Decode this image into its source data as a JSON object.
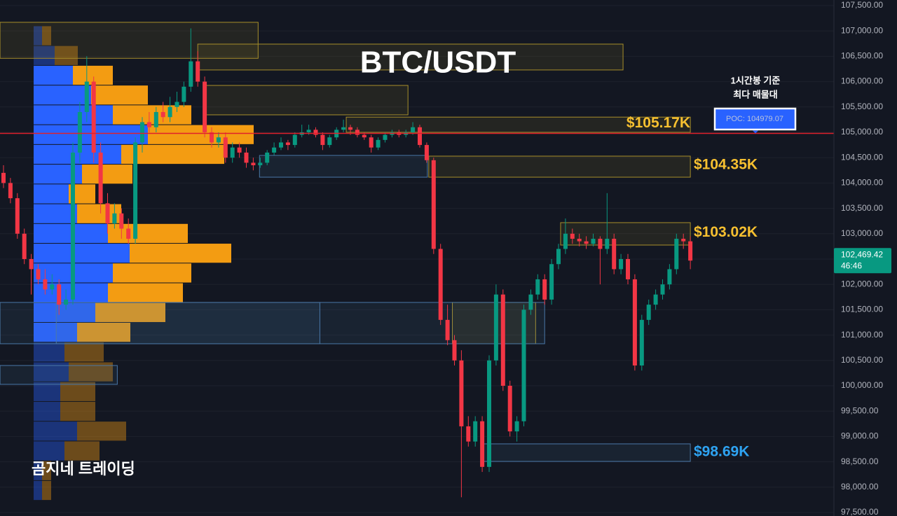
{
  "chart_data": {
    "type": "candlestick",
    "title": "BTC/USDT",
    "watermark": "곰지네 트레이딩",
    "ylim": [
      97431,
      107610
    ],
    "yticks": [
      {
        "value": 97500,
        "label": "97,500.00"
      },
      {
        "value": 98000,
        "label": "98,000.00"
      },
      {
        "value": 98500,
        "label": "98,500.00"
      },
      {
        "value": 99000,
        "label": "99,000.00"
      },
      {
        "value": 99500,
        "label": "99,500.00"
      },
      {
        "value": 100000,
        "label": "100,000.00"
      },
      {
        "value": 100500,
        "label": "100,500.00"
      },
      {
        "value": 101000,
        "label": "101,000.00"
      },
      {
        "value": 101500,
        "label": "101,500.00"
      },
      {
        "value": 102000,
        "label": "102,000.00"
      },
      {
        "value": 102500,
        "label": "102,500.00"
      },
      {
        "value": 103000,
        "label": "103,000.00"
      },
      {
        "value": 103500,
        "label": "103,500.00"
      },
      {
        "value": 104000,
        "label": "104,000.00"
      },
      {
        "value": 104500,
        "label": "104,500.00"
      },
      {
        "value": 105000,
        "label": "105,000.00"
      },
      {
        "value": 105500,
        "label": "105,500.00"
      },
      {
        "value": 106000,
        "label": "106,000.00"
      },
      {
        "value": 106500,
        "label": "106,500.00"
      },
      {
        "value": 107000,
        "label": "107,000.00"
      },
      {
        "value": 107500,
        "label": "107,500.00"
      }
    ],
    "grid": true,
    "up_color": "#089981",
    "down_color": "#f23645",
    "candles": [
      [
        104200,
        104350,
        103900,
        104000
      ],
      [
        104000,
        104100,
        103600,
        103700
      ],
      [
        103700,
        103800,
        102900,
        103000
      ],
      [
        103000,
        103100,
        102400,
        102500
      ],
      [
        102500,
        102600,
        101800,
        102300
      ],
      [
        102300,
        102400,
        102000,
        102100
      ],
      [
        102100,
        102300,
        101800,
        101900
      ],
      [
        101900,
        102200,
        101800,
        102000
      ],
      [
        102000,
        102100,
        101400,
        101600
      ],
      [
        101600,
        101900,
        101500,
        101700
      ],
      [
        101700,
        104800,
        101600,
        104600
      ],
      [
        104600,
        105600,
        104400,
        105400
      ],
      [
        105400,
        106500,
        105200,
        106000
      ],
      [
        106000,
        106100,
        104400,
        104600
      ],
      [
        104600,
        104800,
        103400,
        103600
      ],
      [
        103600,
        103800,
        103000,
        103200
      ],
      [
        103200,
        103600,
        103100,
        103400
      ],
      [
        103400,
        103500,
        102900,
        103100
      ],
      [
        103100,
        103300,
        102800,
        102900
      ],
      [
        102900,
        104900,
        102800,
        104800
      ],
      [
        104800,
        105300,
        104600,
        105200
      ],
      [
        105200,
        105400,
        105000,
        105100
      ],
      [
        105100,
        105500,
        105000,
        105400
      ],
      [
        105400,
        105600,
        105200,
        105300
      ],
      [
        105300,
        105700,
        105200,
        105500
      ],
      [
        105500,
        105800,
        105400,
        105600
      ],
      [
        105600,
        106000,
        105500,
        105900
      ],
      [
        105900,
        107050,
        105800,
        106400
      ],
      [
        106400,
        106600,
        105900,
        106000
      ],
      [
        106000,
        106100,
        104900,
        105000
      ],
      [
        105000,
        105100,
        104700,
        104800
      ],
      [
        104800,
        105000,
        104700,
        104900
      ],
      [
        104900,
        105000,
        104400,
        104500
      ],
      [
        104500,
        104800,
        104400,
        104700
      ],
      [
        104700,
        104800,
        104500,
        104600
      ],
      [
        104600,
        104700,
        104300,
        104400
      ],
      [
        104400,
        104500,
        104250,
        104350
      ],
      [
        104350,
        104500,
        104300,
        104400
      ],
      [
        104400,
        104650,
        104350,
        104600
      ],
      [
        104600,
        104800,
        104550,
        104700
      ],
      [
        104700,
        104900,
        104650,
        104800
      ],
      [
        104800,
        104850,
        104650,
        104750
      ],
      [
        104750,
        105000,
        104700,
        104950
      ],
      [
        104950,
        105150,
        104900,
        105000
      ],
      [
        105000,
        105150,
        104950,
        105050
      ],
      [
        105050,
        105100,
        104900,
        104950
      ],
      [
        104950,
        105000,
        104650,
        104750
      ],
      [
        104750,
        104950,
        104700,
        104900
      ],
      [
        104900,
        105100,
        104850,
        105050
      ],
      [
        105050,
        105250,
        105000,
        105100
      ],
      [
        105100,
        105150,
        104950,
        105050
      ],
      [
        105050,
        105100,
        104900,
        104950
      ],
      [
        104950,
        105000,
        104850,
        104900
      ],
      [
        104900,
        104950,
        104600,
        104700
      ],
      [
        104700,
        104900,
        104650,
        104850
      ],
      [
        104850,
        105000,
        104800,
        104950
      ],
      [
        104950,
        105050,
        104900,
        105000
      ],
      [
        105000,
        105050,
        104900,
        104950
      ],
      [
        104950,
        105050,
        104900,
        105000
      ],
      [
        105000,
        105200,
        104950,
        105100
      ],
      [
        105100,
        105150,
        104700,
        104750
      ],
      [
        104750,
        104800,
        104400,
        104450
      ],
      [
        104450,
        104500,
        102600,
        102700
      ],
      [
        102700,
        102800,
        101200,
        101300
      ],
      [
        101300,
        101600,
        100800,
        100900
      ],
      [
        100900,
        101000,
        100400,
        100500
      ],
      [
        100500,
        100700,
        97800,
        99200
      ],
      [
        99200,
        99400,
        98800,
        98900
      ],
      [
        98900,
        99400,
        98800,
        99300
      ],
      [
        99300,
        99400,
        98300,
        98400
      ],
      [
        98400,
        100600,
        98300,
        100500
      ],
      [
        100500,
        102000,
        100400,
        101800
      ],
      [
        101800,
        101900,
        99900,
        100000
      ],
      [
        100000,
        100100,
        99000,
        99100
      ],
      [
        99100,
        99400,
        98900,
        99300
      ],
      [
        99300,
        101600,
        99200,
        101500
      ],
      [
        101500,
        101900,
        101400,
        101800
      ],
      [
        101800,
        102200,
        101700,
        102100
      ],
      [
        102100,
        102200,
        101600,
        101700
      ],
      [
        101700,
        102500,
        101600,
        102400
      ],
      [
        102400,
        102800,
        102300,
        102700
      ],
      [
        102700,
        103300,
        102600,
        103000
      ],
      [
        103000,
        103100,
        102800,
        102900
      ],
      [
        102900,
        103000,
        102750,
        102850
      ],
      [
        102850,
        102950,
        102700,
        102800
      ],
      [
        102800,
        103000,
        102750,
        102900
      ],
      [
        102900,
        102950,
        102000,
        102700
      ],
      [
        102700,
        103800,
        102600,
        102900
      ],
      [
        102900,
        103000,
        102200,
        102300
      ],
      [
        102300,
        102600,
        102200,
        102500
      ],
      [
        102500,
        102600,
        102000,
        102100
      ],
      [
        102100,
        102200,
        100300,
        100400
      ],
      [
        100400,
        101400,
        100300,
        101300
      ],
      [
        101300,
        101700,
        101200,
        101600
      ],
      [
        101600,
        101900,
        101500,
        101800
      ],
      [
        101800,
        102100,
        101700,
        102000
      ],
      [
        102000,
        102400,
        101900,
        102300
      ],
      [
        102300,
        103000,
        102200,
        102900
      ],
      [
        102900,
        103000,
        102700,
        102850
      ],
      [
        102850,
        102950,
        102300,
        102469.42
      ]
    ],
    "volume_profile": {
      "bins": [
        107100,
        106710,
        106320,
        105930,
        105540,
        105150,
        104760,
        104370,
        103980,
        103590,
        103200,
        102810,
        102420,
        102030,
        101640,
        101250,
        100860,
        100470,
        100080,
        99690,
        99300,
        98910,
        98520,
        98130,
        97740
      ],
      "buy": [
        12,
        30,
        56,
        82,
        113,
        163,
        125,
        69,
        50,
        62,
        106,
        137,
        113,
        106,
        88,
        62,
        44,
        50,
        38,
        38,
        62,
        44,
        12,
        12
      ],
      "sell": [
        13,
        33,
        57,
        81,
        112,
        151,
        147,
        72,
        38,
        63,
        114,
        145,
        112,
        107,
        100,
        76,
        56,
        63,
        50,
        50,
        70,
        50,
        13,
        13
      ],
      "buy_color": "#2962ff",
      "sell_color": "#f39c12",
      "value_area": [
        100860,
        106320
      ]
    },
    "zones": [
      {
        "start": -0.5,
        "end": 36.7,
        "top": 107170,
        "bottom": 106460,
        "color": "#a88f2a"
      },
      {
        "start": 28,
        "end": 89.3,
        "top": 106740,
        "bottom": 106230,
        "color": "#a88f2a"
      },
      {
        "start": 29.1,
        "end": 58.3,
        "top": 105925,
        "bottom": 105345,
        "color": "#a88f2a"
      },
      {
        "start": 49.4,
        "end": 99,
        "top": 105300,
        "bottom": 105000,
        "color": "#a88f2a"
      },
      {
        "start": 61.3,
        "end": 99,
        "top": 104530,
        "bottom": 104115,
        "color": "#a88f2a"
      },
      {
        "start": 80.3,
        "end": 99,
        "top": 103218,
        "bottom": 102776,
        "color": "#a88f2a"
      },
      {
        "start": 64.7,
        "end": 76.7,
        "top": 101644,
        "bottom": 100829,
        "color": "#a88f2a"
      },
      {
        "start": 36.9,
        "end": 61.1,
        "top": 104544,
        "bottom": 104115,
        "color": "#4a78a8"
      },
      {
        "start": -0.5,
        "end": 45.6,
        "top": 101644,
        "bottom": 100829,
        "color": "#4a78a8"
      },
      {
        "start": 7.6,
        "end": 78,
        "top": 101644,
        "bottom": 100829,
        "color": "#4a78a8"
      },
      {
        "start": -0.5,
        "end": 16.4,
        "top": 100400,
        "bottom": 100028,
        "color": "#4a78a8"
      },
      {
        "start": 69.2,
        "end": 99,
        "top": 98854,
        "bottom": 98508,
        "color": "#4a78a8"
      }
    ],
    "levels": [
      {
        "value": 105170,
        "label": "$105.17K",
        "color": "#f7c030",
        "position": "inside"
      },
      {
        "value": 104350,
        "label": "$104.35K",
        "color": "#f7c030",
        "position": "outside"
      },
      {
        "value": 103020,
        "label": "$103.02K",
        "color": "#f7c030",
        "position": "outside"
      },
      {
        "value": 98690,
        "label": "$98.69K",
        "color": "#2ea3f2",
        "position": "outside"
      }
    ],
    "poc": {
      "value": 104979.07,
      "label": "POC: 104979.07",
      "color": "#e0202a"
    },
    "annotation": [
      "1시간봉 기준",
      "최다 매물대"
    ],
    "last_price": {
      "value": 102469.42,
      "label": "102,469.42",
      "color": "#089981"
    },
    "countdown": "46:46"
  }
}
